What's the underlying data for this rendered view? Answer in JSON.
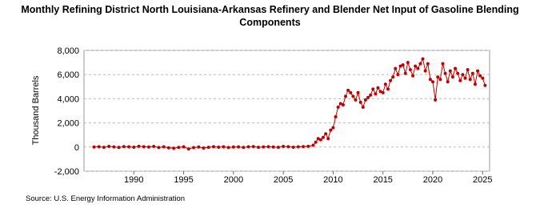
{
  "chart_data": {
    "type": "line",
    "title": "Monthly Refining District North Louisiana-Arkansas Refinery and Blender Net Input of Gasoline Blending Components",
    "y_label": "Thousand Barrels",
    "source": "Source: U.S. Energy Information Administration",
    "xlim": [
      1985,
      2025.7
    ],
    "xticks": [
      1990,
      1995,
      2000,
      2005,
      2010,
      2015,
      2020,
      2025
    ],
    "ylim": [
      -2000,
      8000
    ],
    "yticks": [
      {
        "value": -2000,
        "label": "-2,000"
      },
      {
        "value": 0,
        "label": "0"
      },
      {
        "value": 2000,
        "label": "2,000"
      },
      {
        "value": 4000,
        "label": "4,000"
      },
      {
        "value": 6000,
        "label": "6,000"
      },
      {
        "value": 8000,
        "label": "8,000"
      }
    ],
    "grid": true,
    "series": [
      {
        "color": "#c00000",
        "x": [
          1986.0,
          1986.5,
          1987.0,
          1987.5,
          1988.0,
          1988.5,
          1989.0,
          1989.5,
          1990.0,
          1990.5,
          1991.0,
          1991.5,
          1992.0,
          1992.5,
          1993.0,
          1993.5,
          1994.0,
          1994.5,
          1995.0,
          1995.5,
          1996.0,
          1996.5,
          1997.0,
          1997.5,
          1998.0,
          1998.5,
          1999.0,
          1999.5,
          2000.0,
          2000.5,
          2001.0,
          2001.5,
          2002.0,
          2002.5,
          2003.0,
          2003.5,
          2004.0,
          2004.5,
          2005.0,
          2005.5,
          2006.0,
          2006.5,
          2007.0,
          2007.5,
          2008.0,
          2008.25,
          2008.5,
          2008.75,
          2009.0,
          2009.25,
          2009.5,
          2009.75,
          2010.0,
          2010.25,
          2010.5,
          2010.75,
          2011.0,
          2011.25,
          2011.5,
          2011.75,
          2012.0,
          2012.25,
          2012.5,
          2012.75,
          2013.0,
          2013.25,
          2013.5,
          2013.75,
          2014.0,
          2014.25,
          2014.5,
          2014.75,
          2015.0,
          2015.25,
          2015.5,
          2015.75,
          2016.0,
          2016.25,
          2016.5,
          2016.75,
          2017.0,
          2017.25,
          2017.5,
          2017.75,
          2018.0,
          2018.25,
          2018.5,
          2018.75,
          2019.0,
          2019.25,
          2019.5,
          2019.75,
          2020.0,
          2020.25,
          2020.5,
          2020.75,
          2021.0,
          2021.25,
          2021.5,
          2021.75,
          2022.0,
          2022.25,
          2022.5,
          2022.75,
          2023.0,
          2023.25,
          2023.5,
          2023.75,
          2024.0,
          2024.25,
          2024.5,
          2024.75,
          2025.0,
          2025.25
        ],
        "values": [
          0,
          30,
          -20,
          50,
          10,
          -30,
          40,
          20,
          -10,
          60,
          30,
          0,
          50,
          -40,
          20,
          -60,
          -100,
          -30,
          20,
          -150,
          -50,
          0,
          -80,
          -20,
          30,
          -10,
          20,
          -40,
          0,
          10,
          -30,
          20,
          40,
          -20,
          10,
          30,
          0,
          -20,
          50,
          30,
          -10,
          20,
          40,
          60,
          150,
          400,
          700,
          600,
          800,
          1100,
          700,
          1400,
          1600,
          2500,
          3300,
          3600,
          3500,
          4200,
          4700,
          4500,
          4200,
          3900,
          4500,
          3700,
          3300,
          3900,
          4100,
          4300,
          4800,
          4400,
          4900,
          4600,
          4500,
          5200,
          4800,
          5500,
          5800,
          6500,
          6000,
          6700,
          6800,
          6100,
          7000,
          6400,
          5900,
          6700,
          6500,
          6900,
          7300,
          6300,
          6900,
          5600,
          5400,
          3900,
          5800,
          5600,
          6900,
          6100,
          5400,
          6300,
          5800,
          6500,
          6100,
          5500,
          6000,
          5700,
          6400,
          5600,
          6100,
          5200,
          6300,
          5900,
          5700,
          5100
        ]
      }
    ]
  }
}
